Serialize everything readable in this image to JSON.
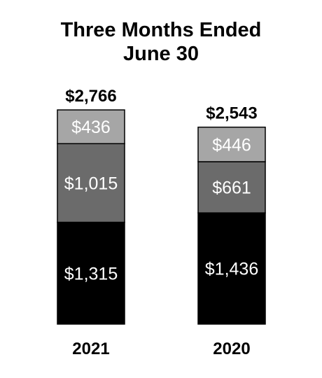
{
  "chart_data": {
    "type": "bar",
    "stacked": true,
    "title": [
      "Three Months Ended",
      "June 30"
    ],
    "categories": [
      "2021",
      "2020"
    ],
    "series": [
      {
        "values": [
          1315,
          1436
        ],
        "labels": [
          "$1,315",
          "$1,436"
        ],
        "color": "#000000"
      },
      {
        "values": [
          1015,
          661
        ],
        "labels": [
          "$1,015",
          "$661"
        ],
        "color": "#6b6b6b"
      },
      {
        "values": [
          436,
          446
        ],
        "labels": [
          "$436",
          "$446"
        ],
        "color": "#a6a6a6"
      }
    ],
    "totals": [
      2766,
      2543
    ],
    "total_labels": [
      "$2,766",
      "$2,543"
    ],
    "grid": false,
    "legend": false
  }
}
